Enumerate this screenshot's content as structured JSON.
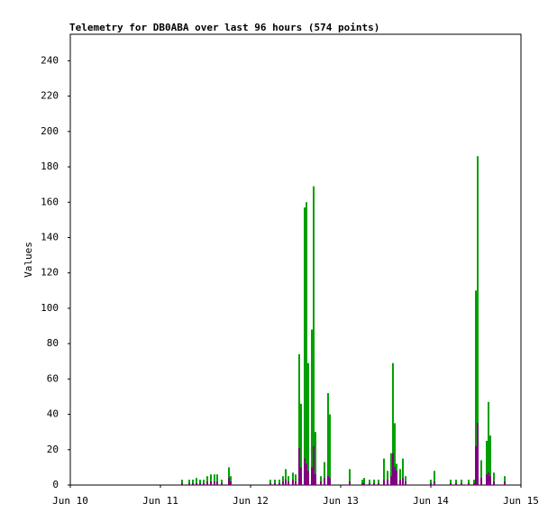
{
  "chart_data": {
    "type": "bar",
    "title": "Telemetry for DB0ABA over last 96 hours (574 points)",
    "y_label": "Values",
    "x": [
      1.24,
      1.32,
      1.36,
      1.4,
      1.44,
      1.48,
      1.52,
      1.56,
      1.6,
      1.63,
      1.68,
      1.76,
      1.78,
      2.22,
      2.27,
      2.32,
      2.36,
      2.39,
      2.42,
      2.47,
      2.5,
      2.54,
      2.56,
      2.6,
      2.62,
      2.64,
      2.68,
      2.7,
      2.72,
      2.78,
      2.82,
      2.86,
      2.88,
      3.1,
      3.24,
      3.26,
      3.32,
      3.37,
      3.42,
      3.48,
      3.52,
      3.56,
      3.58,
      3.6,
      3.62,
      3.66,
      3.69,
      3.72,
      4.0,
      4.04,
      4.22,
      4.28,
      4.34,
      4.42,
      4.48,
      4.5,
      4.52,
      4.56,
      4.62,
      4.64,
      4.66,
      4.7,
      4.82
    ],
    "series": [
      {
        "color": "#00a000",
        "values": [
          3,
          3,
          3,
          4,
          3,
          3,
          5,
          6,
          6,
          6,
          3,
          10,
          5,
          3,
          3,
          3,
          5,
          9,
          5,
          7,
          6,
          74,
          46,
          157,
          160,
          69,
          88,
          169,
          30,
          5,
          13,
          52,
          40,
          9,
          3,
          4,
          3,
          3,
          3,
          15,
          8,
          18,
          69,
          35,
          12,
          9,
          15,
          5,
          3,
          8,
          3,
          3,
          3,
          3,
          3,
          110,
          186,
          14,
          25,
          47,
          28,
          7,
          5
        ]
      },
      {
        "color": "#800080",
        "values": [
          1,
          1,
          1,
          1,
          1,
          1,
          2,
          2,
          2,
          2,
          1,
          4,
          2,
          1,
          1,
          1,
          2,
          3,
          2,
          3,
          2,
          21,
          10,
          15,
          12,
          8,
          10,
          22,
          6,
          2,
          4,
          5,
          4,
          2,
          1,
          1,
          1,
          1,
          1,
          3,
          3,
          5,
          18,
          10,
          8,
          3,
          4,
          2,
          1,
          2,
          1,
          1,
          1,
          1,
          1,
          22,
          35,
          4,
          6,
          7,
          5,
          2,
          2
        ]
      }
    ],
    "xlim": [
      0,
      5
    ],
    "xticks": [
      {
        "value": 0,
        "label": "Jun 10"
      },
      {
        "value": 1,
        "label": "Jun 11"
      },
      {
        "value": 2,
        "label": "Jun 12"
      },
      {
        "value": 3,
        "label": "Jun 13"
      },
      {
        "value": 4,
        "label": "Jun 14"
      },
      {
        "value": 5,
        "label": "Jun 15"
      }
    ],
    "ylim": [
      0,
      255
    ],
    "yticks": [
      0,
      20,
      40,
      60,
      80,
      100,
      120,
      140,
      160,
      180,
      200,
      220,
      240
    ]
  }
}
